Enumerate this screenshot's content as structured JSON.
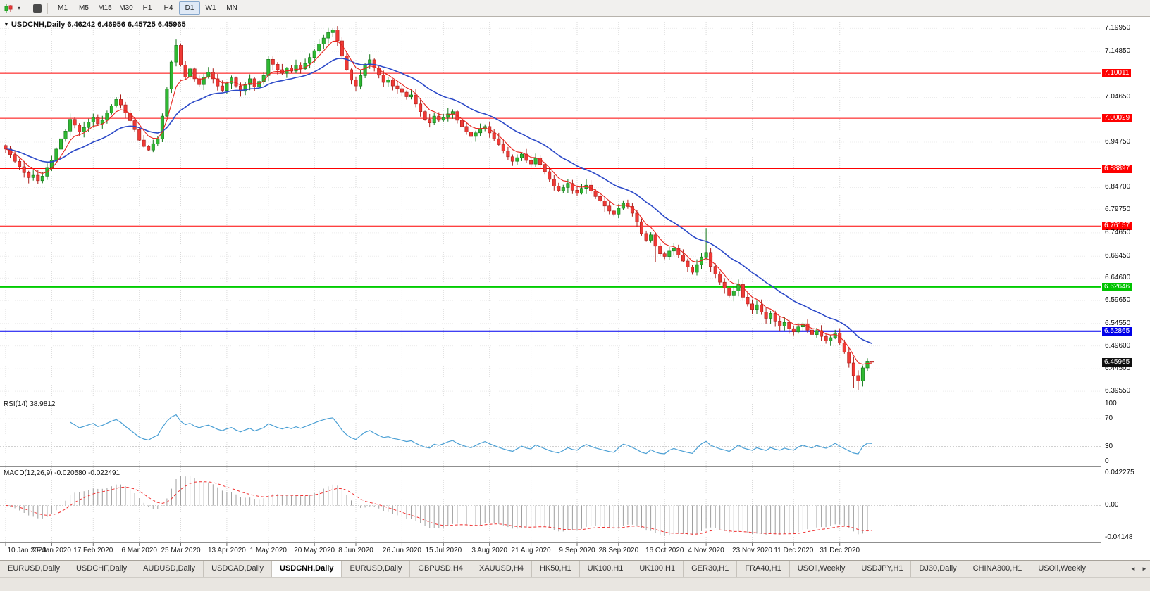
{
  "toolbar": {
    "timeframes": [
      "M1",
      "M5",
      "M15",
      "M30",
      "H1",
      "H4",
      "D1",
      "W1",
      "MN"
    ],
    "active_timeframe": "D1",
    "caret": "▾"
  },
  "chart": {
    "title_marker": "▼",
    "title_symbol": "USDCNH,Daily",
    "title_ohlc": "6.46242 6.46956 6.45725 6.45965",
    "price_axis": {
      "labels": [
        {
          "text": "7.19950",
          "value": 7.1995,
          "kind": "plain"
        },
        {
          "text": "7.14850",
          "value": 7.1485,
          "kind": "plain"
        },
        {
          "text": "7.10011",
          "value": 7.10011,
          "kind": "res"
        },
        {
          "text": "7.04650",
          "value": 7.0465,
          "kind": "plain"
        },
        {
          "text": "7.00029",
          "value": 7.00029,
          "kind": "res"
        },
        {
          "text": "6.94750",
          "value": 6.9475,
          "kind": "plain"
        },
        {
          "text": "6.88897",
          "value": 6.88897,
          "kind": "res"
        },
        {
          "text": "6.84700",
          "value": 6.847,
          "kind": "plain"
        },
        {
          "text": "6.79750",
          "value": 6.7975,
          "kind": "plain"
        },
        {
          "text": "6.76157",
          "value": 6.76157,
          "kind": "res"
        },
        {
          "text": "6.74650",
          "value": 6.7465,
          "kind": "plain"
        },
        {
          "text": "6.69450",
          "value": 6.6945,
          "kind": "plain"
        },
        {
          "text": "6.64600",
          "value": 6.646,
          "kind": "plain"
        },
        {
          "text": "6.62646",
          "value": 6.62646,
          "kind": "green"
        },
        {
          "text": "6.59650",
          "value": 6.5965,
          "kind": "plain"
        },
        {
          "text": "6.54550",
          "value": 6.5455,
          "kind": "plain"
        },
        {
          "text": "6.52865",
          "value": 6.52865,
          "kind": "blue"
        },
        {
          "text": "6.49600",
          "value": 6.496,
          "kind": "plain"
        },
        {
          "text": "6.45965",
          "value": 6.45965,
          "kind": "cur"
        },
        {
          "text": "6.44500",
          "value": 6.445,
          "kind": "plain"
        },
        {
          "text": "6.39550",
          "value": 6.3955,
          "kind": "plain"
        }
      ]
    }
  },
  "indicators": {
    "rsi": {
      "label": "RSI(14) 38.9812",
      "period": 14,
      "value": 38.9812,
      "axis_labels": [
        {
          "text": "100",
          "value": 100
        },
        {
          "text": "70",
          "value": 70
        },
        {
          "text": "30",
          "value": 30
        },
        {
          "text": "0",
          "value": 0
        }
      ]
    },
    "macd": {
      "label": "MACD(12,26,9) -0.020580 -0.022491",
      "macd_value": -0.02058,
      "signal_value": -0.022491,
      "axis_labels": [
        {
          "text": "0.042275",
          "value": 0.042275
        },
        {
          "text": "0.00",
          "value": 0
        },
        {
          "text": "-0.04148",
          "value": -0.04148
        }
      ]
    }
  },
  "x_axis": {
    "dates": [
      "10 Jan 2020",
      "29 Jan 2020",
      "17 Feb 2020",
      "6 Mar 2020",
      "25 Mar 2020",
      "13 Apr 2020",
      "1 May 2020",
      "20 May 2020",
      "8 Jun 2020",
      "26 Jun 2020",
      "15 Jul 2020",
      "3 Aug 2020",
      "21 Aug 2020",
      "9 Sep 2020",
      "28 Sep 2020",
      "16 Oct 2020",
      "4 Nov 2020",
      "23 Nov 2020",
      "11 Dec 2020",
      "31 Dec 2020"
    ]
  },
  "tabs": {
    "items": [
      "EURUSD,Daily",
      "USDCHF,Daily",
      "AUDUSD,Daily",
      "USDCAD,Daily",
      "USDCNH,Daily",
      "EURUSD,Daily",
      "GBPUSD,H4",
      "XAUUSD,H4",
      "HK50,H1",
      "UK100,H1",
      "UK100,H1",
      "GER30,H1",
      "FRA40,H1",
      "USOil,Weekly",
      "USDJPY,H1",
      "DJ30,Daily",
      "CHINA300,H1",
      "USOil,Weekly"
    ],
    "active_index": 4,
    "scroll_left_icon": "◄",
    "scroll_right_icon": "►"
  },
  "colors": {
    "bull": "#2FB832",
    "bull_edge": "#117517",
    "bear": "#EF3A36",
    "bear_edge": "#A81E1A",
    "ma_fast": "#E8251E",
    "ma_slow": "#2B49C8",
    "rsi": "#4A9FD4",
    "macd_hist": "#9F9F9F",
    "macd_signal": "#F03030",
    "res_line": "#FE0000",
    "sup_green": "#00CC00",
    "sup_blue": "#0000F0"
  },
  "chart_data": {
    "type": "candlestick",
    "symbol": "USDCNH",
    "timeframe": "Daily",
    "x_range": [
      "10 Jan 2020",
      "8 Jan 2021"
    ],
    "y_range": [
      6.3955,
      7.1995
    ],
    "last_ohlc": {
      "open": 6.46242,
      "high": 6.46956,
      "low": 6.45725,
      "close": 6.45965
    },
    "first_open": 6.94,
    "closes": [
      6.932,
      6.92,
      6.905,
      6.893,
      6.88,
      6.869,
      6.874,
      6.862,
      6.872,
      6.89,
      6.908,
      6.932,
      6.955,
      6.972,
      6.998,
      6.985,
      6.97,
      6.98,
      6.992,
      7.002,
      6.988,
      6.996,
      7.012,
      7.028,
      7.042,
      7.03,
      7.012,
      6.995,
      6.975,
      6.952,
      6.938,
      6.93,
      6.944,
      6.955,
      7.005,
      7.065,
      7.125,
      7.162,
      7.118,
      7.092,
      7.11,
      7.088,
      7.075,
      7.092,
      7.103,
      7.088,
      7.072,
      7.062,
      7.078,
      7.09,
      7.072,
      7.06,
      7.075,
      7.088,
      7.07,
      7.082,
      7.095,
      7.131,
      7.12,
      7.108,
      7.1,
      7.112,
      7.105,
      7.118,
      7.11,
      7.122,
      7.135,
      7.15,
      7.165,
      7.178,
      7.19,
      7.196,
      7.172,
      7.138,
      7.108,
      7.085,
      7.072,
      7.095,
      7.118,
      7.13,
      7.112,
      7.096,
      7.08,
      7.085,
      7.072,
      7.066,
      7.058,
      7.048,
      7.052,
      7.032,
      7.015,
      6.998,
      6.99,
      7.005,
      6.996,
      7.002,
      7.01,
      7.015,
      6.996,
      6.982,
      6.97,
      6.96,
      6.968,
      6.976,
      6.982,
      6.968,
      6.955,
      6.942,
      6.928,
      6.915,
      6.905,
      6.913,
      6.921,
      6.907,
      6.899,
      6.912,
      6.898,
      6.882,
      6.865,
      6.85,
      6.84,
      6.847,
      6.856,
      6.841,
      6.834,
      6.845,
      6.852,
      6.839,
      6.827,
      6.817,
      6.806,
      6.795,
      6.788,
      6.801,
      6.812,
      6.805,
      6.79,
      6.771,
      6.745,
      6.73,
      6.742,
      6.717,
      6.7,
      6.694,
      6.706,
      6.712,
      6.697,
      6.684,
      6.671,
      6.659,
      6.676,
      6.693,
      6.703,
      6.672,
      6.655,
      6.637,
      6.624,
      6.607,
      6.618,
      6.632,
      6.604,
      6.589,
      6.577,
      6.587,
      6.571,
      6.557,
      6.568,
      6.551,
      6.54,
      6.548,
      6.534,
      6.527,
      6.538,
      6.545,
      6.531,
      6.521,
      6.53,
      6.517,
      6.507,
      6.514,
      6.524,
      6.502,
      6.482,
      6.458,
      6.43,
      6.418,
      6.447,
      6.462,
      6.45965
    ],
    "wick_overrides": {
      "37": {
        "high": 7.175
      },
      "71": {
        "high": 7.1995
      },
      "141": {
        "low": 6.682
      },
      "152": {
        "high": 6.757
      },
      "184": {
        "low": 6.403
      },
      "185": {
        "low": 6.398
      }
    },
    "horizontal_levels": [
      {
        "value": 7.10011,
        "color": "#FE0000",
        "width": 1,
        "role": "resistance"
      },
      {
        "value": 7.00029,
        "color": "#FE0000",
        "width": 1,
        "role": "resistance"
      },
      {
        "value": 6.88897,
        "color": "#FE0000",
        "width": 1,
        "role": "resistance"
      },
      {
        "value": 6.76157,
        "color": "#FE0000",
        "width": 1,
        "role": "resistance"
      },
      {
        "value": 6.62646,
        "color": "#00CC00",
        "width": 2,
        "role": "support"
      },
      {
        "value": 6.52865,
        "color": "#0000F0",
        "width": 2,
        "role": "support"
      }
    ],
    "overlays": [
      {
        "name": "fast moving average",
        "color": "#E8251E"
      },
      {
        "name": "slow moving average",
        "color": "#2B49C8"
      }
    ],
    "sub_indicators": [
      {
        "name": "RSI",
        "period": 14,
        "current": 38.9812
      },
      {
        "name": "MACD",
        "params": "12,26,9",
        "macd": -0.02058,
        "signal": -0.022491
      }
    ]
  }
}
